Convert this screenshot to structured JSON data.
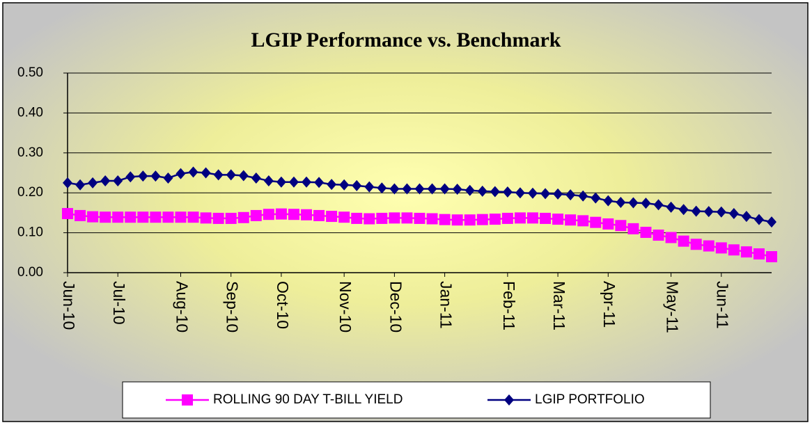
{
  "chart_data": {
    "type": "line",
    "title": "LGIP Performance vs. Benchmark",
    "categories": [
      "Jun-10",
      null,
      null,
      null,
      "Jul-10",
      null,
      null,
      null,
      null,
      "Aug-10",
      null,
      null,
      null,
      "Sep-10",
      null,
      null,
      null,
      "Oct-10",
      null,
      null,
      null,
      null,
      "Nov-10",
      null,
      null,
      null,
      "Dec-10",
      null,
      null,
      null,
      "Jan-11",
      null,
      null,
      null,
      null,
      "Feb-11",
      null,
      null,
      null,
      "Mar-11",
      null,
      null,
      null,
      "Apr-11",
      null,
      null,
      null,
      null,
      "May-11",
      null,
      null,
      null,
      "Jun-11",
      null,
      null,
      null,
      null
    ],
    "series": [
      {
        "name": "ROLLING 90 DAY T-BILL YIELD",
        "color": "#ff00ff",
        "marker": "square",
        "values": [
          0.148,
          0.143,
          0.14,
          0.139,
          0.139,
          0.139,
          0.139,
          0.139,
          0.139,
          0.139,
          0.139,
          0.137,
          0.136,
          0.136,
          0.138,
          0.143,
          0.146,
          0.147,
          0.146,
          0.145,
          0.143,
          0.141,
          0.139,
          0.136,
          0.135,
          0.136,
          0.137,
          0.137,
          0.136,
          0.135,
          0.133,
          0.132,
          0.132,
          0.133,
          0.134,
          0.136,
          0.137,
          0.137,
          0.136,
          0.134,
          0.132,
          0.13,
          0.126,
          0.122,
          0.118,
          0.11,
          0.101,
          0.094,
          0.088,
          0.079,
          0.071,
          0.067,
          0.062,
          0.057,
          0.052,
          0.047,
          0.04
        ]
      },
      {
        "name": "LGIP PORTFOLIO",
        "color": "#000080",
        "marker": "diamond",
        "values": [
          0.225,
          0.22,
          0.225,
          0.23,
          0.23,
          0.24,
          0.242,
          0.242,
          0.237,
          0.248,
          0.252,
          0.25,
          0.245,
          0.245,
          0.243,
          0.237,
          0.23,
          0.227,
          0.227,
          0.227,
          0.226,
          0.221,
          0.22,
          0.218,
          0.215,
          0.212,
          0.21,
          0.21,
          0.21,
          0.21,
          0.21,
          0.209,
          0.206,
          0.204,
          0.203,
          0.202,
          0.2,
          0.199,
          0.198,
          0.197,
          0.195,
          0.192,
          0.187,
          0.18,
          0.176,
          0.175,
          0.174,
          0.17,
          0.164,
          0.158,
          0.154,
          0.153,
          0.152,
          0.148,
          0.141,
          0.133,
          0.127
        ]
      }
    ],
    "ylim": [
      0,
      0.5
    ],
    "yticks": [
      {
        "value": 0,
        "label": "0.00"
      },
      {
        "value": 0.1,
        "label": "0.10"
      },
      {
        "value": 0.2,
        "label": "0.20"
      },
      {
        "value": 0.3,
        "label": "0.30"
      },
      {
        "value": 0.4,
        "label": "0.40"
      },
      {
        "value": 0.5,
        "label": "0.50"
      }
    ],
    "grid": true,
    "legend": "bottom"
  }
}
